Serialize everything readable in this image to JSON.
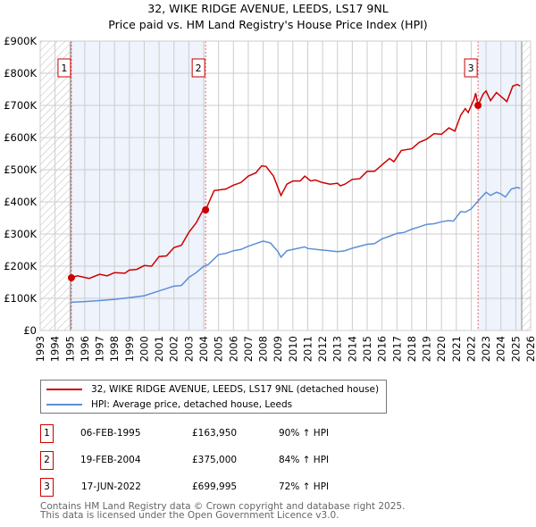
{
  "chart_data": {
    "type": "line",
    "title": "32, WIKE RIDGE AVENUE, LEEDS, LS17 9NL",
    "subtitle": "Price paid vs. HM Land Registry's House Price Index (HPI)",
    "xlim": [
      1993,
      2026
    ],
    "ylim": [
      0,
      900000
    ],
    "x_ticks": [
      "1993",
      "1994",
      "1995",
      "1996",
      "1997",
      "1998",
      "1999",
      "2000",
      "2001",
      "2002",
      "2003",
      "2004",
      "2005",
      "2006",
      "2007",
      "2008",
      "2009",
      "2010",
      "2011",
      "2012",
      "2013",
      "2014",
      "2015",
      "2016",
      "2017",
      "2018",
      "2019",
      "2020",
      "2021",
      "2022",
      "2023",
      "2024",
      "2025",
      "2026"
    ],
    "y_ticks": [
      {
        "v": 0,
        "label": "£0"
      },
      {
        "v": 100000,
        "label": "£100K"
      },
      {
        "v": 200000,
        "label": "£200K"
      },
      {
        "v": 300000,
        "label": "£300K"
      },
      {
        "v": 400000,
        "label": "£400K"
      },
      {
        "v": 500000,
        "label": "£500K"
      },
      {
        "v": 600000,
        "label": "£600K"
      },
      {
        "v": 700000,
        "label": "£700K"
      },
      {
        "v": 800000,
        "label": "£800K"
      },
      {
        "v": 900000,
        "label": "£900K"
      }
    ],
    "grid": true,
    "hatched_ranges": [
      [
        1993,
        1995.1
      ],
      [
        2025.4,
        2026
      ]
    ],
    "shaded_ranges": [
      [
        1995.1,
        2004.13
      ],
      [
        2022.46,
        2025.4
      ]
    ],
    "series": [
      {
        "name": "32, WIKE RIDGE AVENUE, LEEDS, LS17 9NL (detached house)",
        "color": "#cc0000",
        "points": [
          [
            1995.1,
            164
          ],
          [
            1995.5,
            170
          ],
          [
            1996.3,
            162
          ],
          [
            1997,
            175
          ],
          [
            1997.5,
            170
          ],
          [
            1998,
            180
          ],
          [
            1998.7,
            178
          ],
          [
            1999,
            188
          ],
          [
            1999.5,
            190
          ],
          [
            2000,
            202
          ],
          [
            2000.5,
            200
          ],
          [
            2001,
            230
          ],
          [
            2001.5,
            232
          ],
          [
            2002,
            258
          ],
          [
            2002.5,
            265
          ],
          [
            2003,
            305
          ],
          [
            2003.5,
            335
          ],
          [
            2004,
            378
          ],
          [
            2004.13,
            375
          ],
          [
            2004.7,
            435
          ],
          [
            2005.5,
            440
          ],
          [
            2006,
            452
          ],
          [
            2006.5,
            460
          ],
          [
            2007,
            480
          ],
          [
            2007.5,
            490
          ],
          [
            2007.9,
            512
          ],
          [
            2008.2,
            510
          ],
          [
            2008.7,
            480
          ],
          [
            2009.2,
            420
          ],
          [
            2009.6,
            455
          ],
          [
            2010,
            465
          ],
          [
            2010.5,
            465
          ],
          [
            2010.8,
            480
          ],
          [
            2011.2,
            465
          ],
          [
            2011.5,
            468
          ],
          [
            2012,
            460
          ],
          [
            2012.5,
            455
          ],
          [
            2013,
            458
          ],
          [
            2013.2,
            450
          ],
          [
            2013.5,
            455
          ],
          [
            2014,
            470
          ],
          [
            2014.5,
            472
          ],
          [
            2015,
            495
          ],
          [
            2015.5,
            495
          ],
          [
            2016,
            515
          ],
          [
            2016.5,
            535
          ],
          [
            2016.8,
            525
          ],
          [
            2017.3,
            560
          ],
          [
            2018,
            565
          ],
          [
            2018.5,
            585
          ],
          [
            2019,
            595
          ],
          [
            2019.5,
            612
          ],
          [
            2020,
            610
          ],
          [
            2020.5,
            630
          ],
          [
            2020.9,
            620
          ],
          [
            2021.3,
            670
          ],
          [
            2021.6,
            690
          ],
          [
            2021.8,
            678
          ],
          [
            2022.2,
            720
          ],
          [
            2022.3,
            738
          ],
          [
            2022.46,
            700
          ],
          [
            2022.8,
            735
          ],
          [
            2023,
            745
          ],
          [
            2023.3,
            715
          ],
          [
            2023.7,
            740
          ],
          [
            2024,
            728
          ],
          [
            2024.4,
            712
          ],
          [
            2024.8,
            760
          ],
          [
            2025.1,
            765
          ],
          [
            2025.3,
            760
          ]
        ]
      },
      {
        "name": "HPI: Average price, detached house, Leeds",
        "color": "#5b8fd6",
        "points": [
          [
            1995.1,
            88
          ],
          [
            1996,
            90
          ],
          [
            1997,
            93
          ],
          [
            1998,
            97
          ],
          [
            1999,
            102
          ],
          [
            2000,
            108
          ],
          [
            2001,
            123
          ],
          [
            2002,
            138
          ],
          [
            2002.5,
            140
          ],
          [
            2003,
            165
          ],
          [
            2003.5,
            180
          ],
          [
            2004,
            200
          ],
          [
            2004.3,
            205
          ],
          [
            2005,
            236
          ],
          [
            2005.5,
            240
          ],
          [
            2006,
            248
          ],
          [
            2006.5,
            252
          ],
          [
            2007,
            262
          ],
          [
            2007.5,
            270
          ],
          [
            2008,
            278
          ],
          [
            2008.5,
            272
          ],
          [
            2009,
            245
          ],
          [
            2009.2,
            228
          ],
          [
            2009.6,
            248
          ],
          [
            2010,
            252
          ],
          [
            2010.8,
            260
          ],
          [
            2011,
            255
          ],
          [
            2012,
            250
          ],
          [
            2012.5,
            248
          ],
          [
            2013,
            245
          ],
          [
            2013.5,
            248
          ],
          [
            2014,
            256
          ],
          [
            2015,
            268
          ],
          [
            2015.5,
            270
          ],
          [
            2016,
            285
          ],
          [
            2016.5,
            293
          ],
          [
            2017,
            302
          ],
          [
            2017.5,
            305
          ],
          [
            2018,
            315
          ],
          [
            2018.5,
            322
          ],
          [
            2019,
            330
          ],
          [
            2019.5,
            332
          ],
          [
            2020,
            338
          ],
          [
            2020.5,
            342
          ],
          [
            2020.8,
            340
          ],
          [
            2021.3,
            370
          ],
          [
            2021.6,
            368
          ],
          [
            2022,
            378
          ],
          [
            2022.5,
            405
          ],
          [
            2023,
            430
          ],
          [
            2023.3,
            420
          ],
          [
            2023.7,
            430
          ],
          [
            2024,
            425
          ],
          [
            2024.3,
            415
          ],
          [
            2024.7,
            440
          ],
          [
            2025.1,
            445
          ],
          [
            2025.3,
            442
          ]
        ]
      }
    ],
    "point_units": "thousand GBP",
    "sales": [
      {
        "id": "1",
        "x": 1995.1,
        "y": 163950,
        "date": "06-FEB-1995",
        "price": "£163,950",
        "hpi": "90% ↑ HPI"
      },
      {
        "id": "2",
        "x": 2004.13,
        "y": 375000,
        "date": "19-FEB-2004",
        "price": "£375,000",
        "hpi": "84% ↑ HPI"
      },
      {
        "id": "3",
        "x": 2022.46,
        "y": 699995,
        "date": "17-JUN-2022",
        "price": "£699,995",
        "hpi": "72% ↑ HPI"
      }
    ]
  },
  "legend": {
    "red": "32, WIKE RIDGE AVENUE, LEEDS, LS17 9NL (detached house)",
    "blue": "HPI: Average price, detached house, Leeds"
  },
  "footer": {
    "line1": "Contains HM Land Registry data © Crown copyright and database right 2025.",
    "line2": "This data is licensed under the Open Government Licence v3.0."
  }
}
